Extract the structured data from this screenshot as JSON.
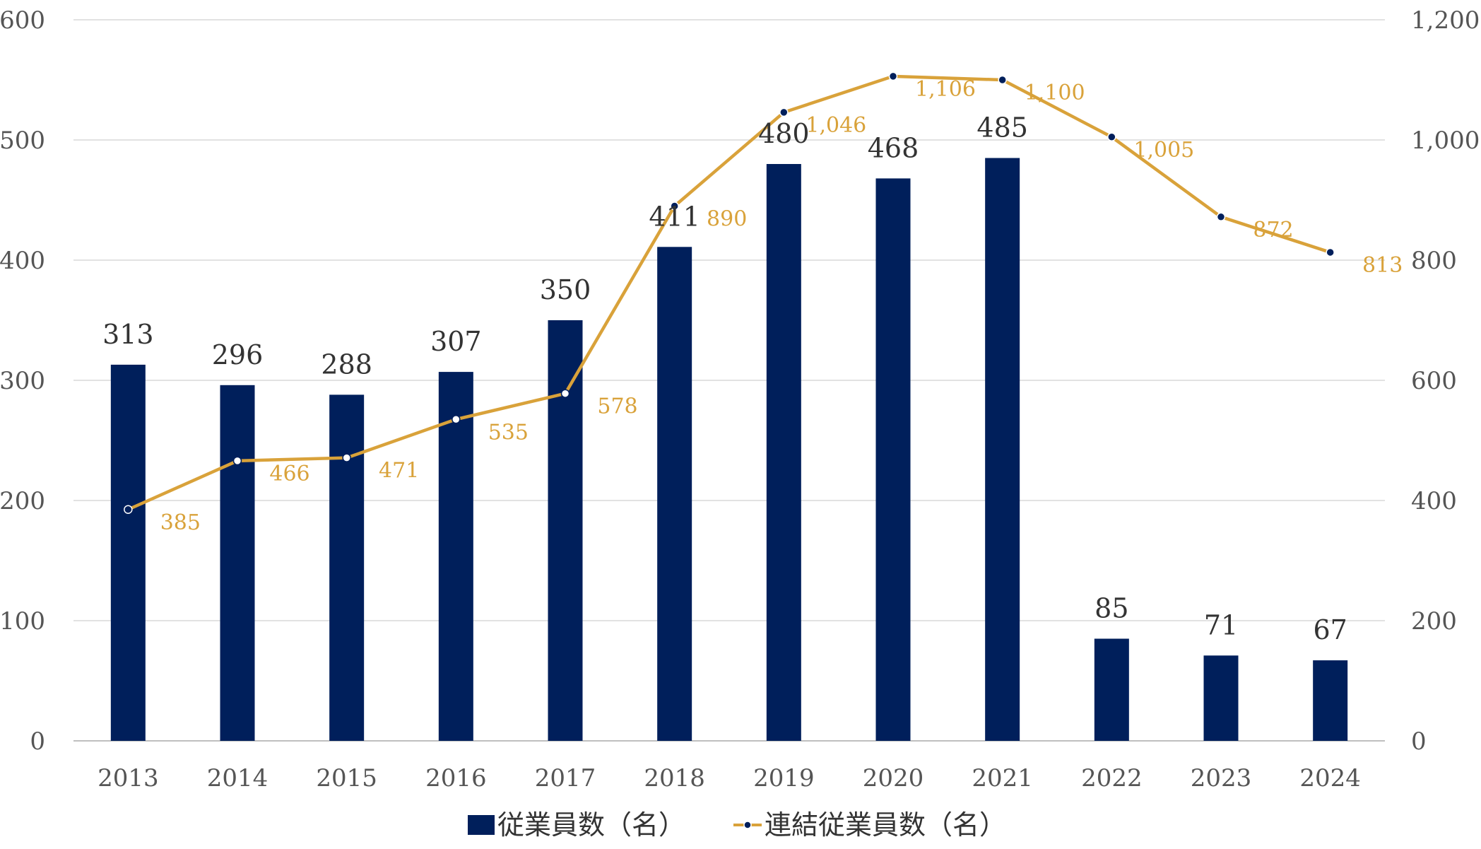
{
  "chart_data": {
    "type": "bar",
    "categories": [
      "2013",
      "2014",
      "2015",
      "2016",
      "2017",
      "2018",
      "2019",
      "2020",
      "2021",
      "2022",
      "2023",
      "2024"
    ],
    "series": [
      {
        "name": "従業員数（名）",
        "type": "bar",
        "axis": "left",
        "color": "#001f5b",
        "values": [
          313,
          296,
          288,
          307,
          350,
          411,
          480,
          468,
          485,
          85,
          71,
          67
        ],
        "labels": [
          "313",
          "296",
          "288",
          "307",
          "350",
          "411",
          "480",
          "468",
          "485",
          "85",
          "71",
          "67"
        ]
      },
      {
        "name": "連結従業員数（名）",
        "type": "line",
        "axis": "right",
        "color": "#d9a23a",
        "values": [
          385,
          466,
          471,
          535,
          578,
          890,
          1046,
          1106,
          1100,
          1005,
          872,
          813
        ],
        "labels": [
          "385",
          "466",
          "471",
          "535",
          "578",
          "890",
          "1,046",
          "1,106",
          "1,100",
          "1,005",
          "872",
          "813"
        ]
      }
    ],
    "y_left": {
      "ylim": [
        0,
        600
      ],
      "ticks": [
        0,
        100,
        200,
        300,
        400,
        500,
        600
      ],
      "tick_labels": [
        "0",
        "100",
        "200",
        "300",
        "400",
        "500",
        "600"
      ]
    },
    "y_right": {
      "ylim": [
        0,
        1200
      ],
      "ticks": [
        0,
        200,
        400,
        600,
        800,
        1000,
        1200
      ],
      "tick_labels": [
        "0",
        "200",
        "400",
        "600",
        "800",
        "1,000",
        "1,200"
      ]
    },
    "grid": true,
    "legend": "bottom"
  }
}
